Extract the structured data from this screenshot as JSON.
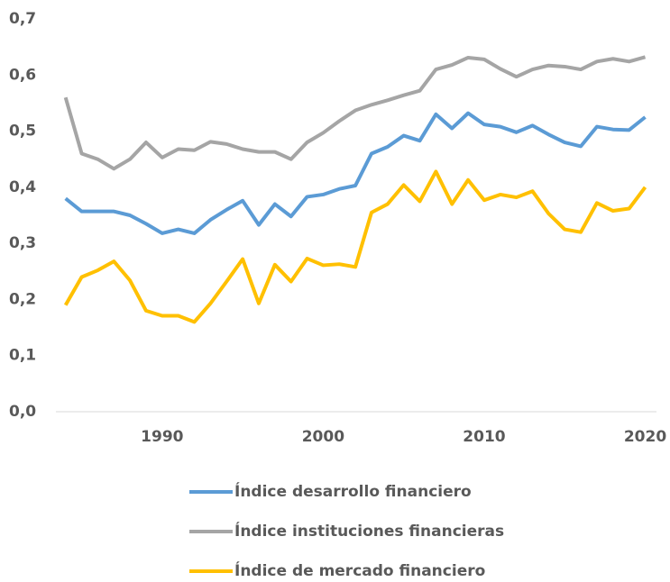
{
  "chart_data": {
    "type": "line",
    "x": [
      1984,
      1985,
      1986,
      1987,
      1988,
      1989,
      1990,
      1991,
      1992,
      1993,
      1994,
      1995,
      1996,
      1997,
      1998,
      1999,
      2000,
      2001,
      2002,
      2003,
      2004,
      2005,
      2006,
      2007,
      2008,
      2009,
      2010,
      2011,
      2012,
      2013,
      2014,
      2015,
      2016,
      2017,
      2018,
      2019,
      2020
    ],
    "series": [
      {
        "name": "Índice desarrollo financiero",
        "color": "#5b9bd5",
        "values": [
          0.38,
          0.357,
          0.357,
          0.357,
          0.35,
          0.335,
          0.318,
          0.325,
          0.318,
          0.342,
          0.36,
          0.376,
          0.333,
          0.37,
          0.348,
          0.383,
          0.387,
          0.397,
          0.403,
          0.46,
          0.472,
          0.492,
          0.483,
          0.53,
          0.505,
          0.532,
          0.512,
          0.508,
          0.498,
          0.51,
          0.494,
          0.48,
          0.473,
          0.508,
          0.503,
          0.502,
          0.525
        ]
      },
      {
        "name": "Índice instituciones financieras",
        "color": "#a5a5a5",
        "values": [
          0.56,
          0.46,
          0.45,
          0.433,
          0.45,
          0.48,
          0.453,
          0.468,
          0.466,
          0.481,
          0.477,
          0.468,
          0.463,
          0.463,
          0.45,
          0.48,
          0.497,
          0.518,
          0.537,
          0.547,
          0.555,
          0.564,
          0.572,
          0.61,
          0.618,
          0.631,
          0.628,
          0.611,
          0.597,
          0.61,
          0.617,
          0.615,
          0.61,
          0.624,
          0.629,
          0.624,
          0.632
        ]
      },
      {
        "name": "Índice de mercado financiero",
        "color": "#ffc000",
        "values": [
          0.19,
          0.24,
          0.252,
          0.268,
          0.234,
          0.18,
          0.171,
          0.171,
          0.16,
          0.193,
          0.232,
          0.272,
          0.193,
          0.262,
          0.232,
          0.273,
          0.261,
          0.263,
          0.258,
          0.355,
          0.37,
          0.404,
          0.375,
          0.428,
          0.37,
          0.413,
          0.377,
          0.387,
          0.382,
          0.393,
          0.353,
          0.325,
          0.32,
          0.372,
          0.358,
          0.362,
          0.4
        ]
      }
    ],
    "xlim": [
      1983.4,
      2020.7
    ],
    "xticks": [
      1990,
      2000,
      2010,
      2020
    ],
    "ylim": [
      0,
      0.7
    ],
    "yticks": [
      {
        "value": 0,
        "label": "0,0"
      },
      {
        "value": 0.1,
        "label": "0,1"
      },
      {
        "value": 0.2,
        "label": "0,2"
      },
      {
        "value": 0.3,
        "label": "0,3"
      },
      {
        "value": 0.4,
        "label": "0,4"
      },
      {
        "value": 0.5,
        "label": "0,5"
      },
      {
        "value": 0.6,
        "label": "0,6"
      },
      {
        "value": 0.7,
        "label": "0,7"
      }
    ],
    "grid": false
  }
}
